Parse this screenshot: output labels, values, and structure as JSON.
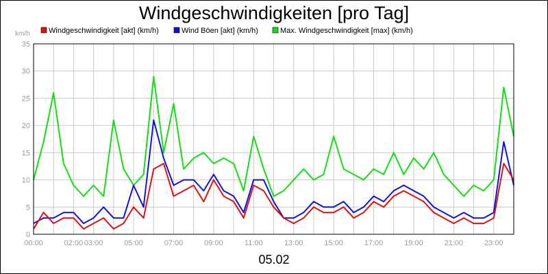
{
  "chart_data": {
    "type": "line",
    "title": "Windgeschwindigkeiten [pro Tag]",
    "ylabel": "km/h",
    "xlabel": "05.02",
    "ylim": [
      0,
      35
    ],
    "y_ticks": [
      "0",
      "5",
      "10",
      "15",
      "20",
      "25",
      "30",
      "35"
    ],
    "x_ticks": [
      "00:00",
      "02:00",
      "03:00",
      "05:00",
      "07:00",
      "09:00",
      "11:00",
      "13:00",
      "15:00",
      "17:00",
      "19:00",
      "21:00",
      "23:00"
    ],
    "x_tick_hours": [
      0,
      2,
      3,
      5,
      7,
      9,
      11,
      13,
      15,
      17,
      19,
      21,
      23
    ],
    "xlim_hours": [
      0,
      24
    ],
    "grid": true,
    "legend_position": "top",
    "x_hours": [
      0,
      0.5,
      1,
      1.5,
      2,
      2.5,
      3,
      3.5,
      4,
      4.5,
      5,
      5.5,
      6,
      6.5,
      7,
      7.5,
      8,
      8.5,
      9,
      9.5,
      10,
      10.5,
      11,
      11.5,
      12,
      12.5,
      13,
      13.5,
      14,
      14.5,
      15,
      15.5,
      16,
      16.5,
      17,
      17.5,
      18,
      18.5,
      19,
      19.5,
      20,
      20.5,
      21,
      21.5,
      22,
      22.5,
      23,
      23.5,
      24
    ],
    "series": [
      {
        "name": "Windgeschwindigkeit [akt] (km/h)",
        "color": "#e01010",
        "values": [
          1,
          4,
          2,
          3,
          3,
          1,
          2,
          3,
          1,
          2,
          5,
          3,
          12,
          13,
          7,
          8,
          9,
          6,
          10,
          7,
          6,
          3,
          9,
          8,
          5,
          3,
          2,
          3,
          5,
          4,
          4,
          5,
          3,
          4,
          6,
          5,
          7,
          8,
          7,
          6,
          4,
          3,
          2,
          3,
          2,
          2,
          3,
          13,
          10
        ]
      },
      {
        "name": "Wind Böen [akt] (km/h)",
        "color": "#1010e0",
        "values": [
          2,
          3,
          3,
          4,
          4,
          2,
          3,
          5,
          3,
          3,
          9,
          5,
          21,
          14,
          9,
          10,
          10,
          8,
          11,
          8,
          7,
          4,
          10,
          10,
          6,
          3,
          3,
          4,
          6,
          5,
          5,
          6,
          4,
          5,
          7,
          6,
          8,
          9,
          8,
          7,
          5,
          4,
          3,
          4,
          3,
          3,
          4,
          17,
          9
        ]
      },
      {
        "name": "Max. Windgeschwindigkeit [max] (km/h)",
        "color": "#10e010",
        "values": [
          10,
          17,
          26,
          13,
          9,
          7,
          9,
          7,
          21,
          12,
          9,
          11,
          29,
          15,
          24,
          12,
          14,
          15,
          13,
          14,
          13,
          8,
          18,
          12,
          7,
          8,
          10,
          12,
          10,
          11,
          18,
          12,
          11,
          10,
          12,
          11,
          15,
          11,
          14,
          12,
          15,
          11,
          9,
          7,
          9,
          8,
          10,
          27,
          18
        ]
      }
    ]
  }
}
